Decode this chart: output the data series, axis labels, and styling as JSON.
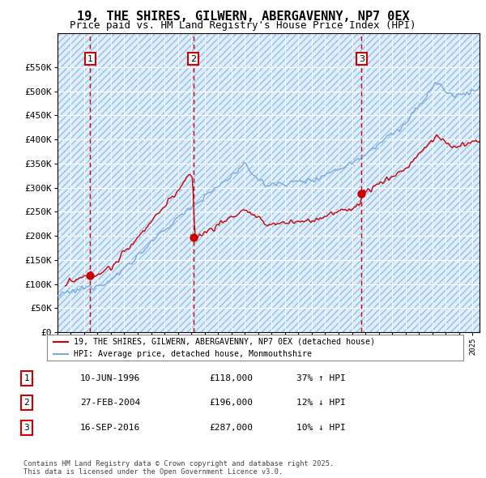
{
  "title": "19, THE SHIRES, GILWERN, ABERGAVENNY, NP7 0EX",
  "subtitle": "Price paid vs. HM Land Registry's House Price Index (HPI)",
  "hpi_label": "HPI: Average price, detached house, Monmouthshire",
  "property_label": "19, THE SHIRES, GILWERN, ABERGAVENNY, NP7 0EX (detached house)",
  "ylim": [
    0,
    620000
  ],
  "yticks": [
    0,
    50000,
    100000,
    150000,
    200000,
    250000,
    300000,
    350000,
    400000,
    450000,
    500000,
    550000
  ],
  "ytick_labels": [
    "£0",
    "£50K",
    "£100K",
    "£150K",
    "£200K",
    "£250K",
    "£300K",
    "£350K",
    "£400K",
    "£450K",
    "£500K",
    "£550K"
  ],
  "sale_prices": [
    118000,
    196000,
    287000
  ],
  "sale_labels": [
    "1",
    "2",
    "3"
  ],
  "red_color": "#cc0000",
  "blue_color": "#7aaadd",
  "background_color": "#ddeeff",
  "grid_color": "#ffffff",
  "title_fontsize": 11,
  "subtitle_fontsize": 9,
  "tick_fontsize": 8,
  "footer_text": "Contains HM Land Registry data © Crown copyright and database right 2025.\nThis data is licensed under the Open Government Licence v3.0.",
  "xstart": 1994.0,
  "xend": 2025.5,
  "table_rows": [
    [
      "1",
      "10-JUN-1996",
      "£118,000",
      "37% ↑ HPI"
    ],
    [
      "2",
      "27-FEB-2004",
      "£196,000",
      "12% ↓ HPI"
    ],
    [
      "3",
      "16-SEP-2016",
      "£287,000",
      "10% ↓ HPI"
    ]
  ]
}
